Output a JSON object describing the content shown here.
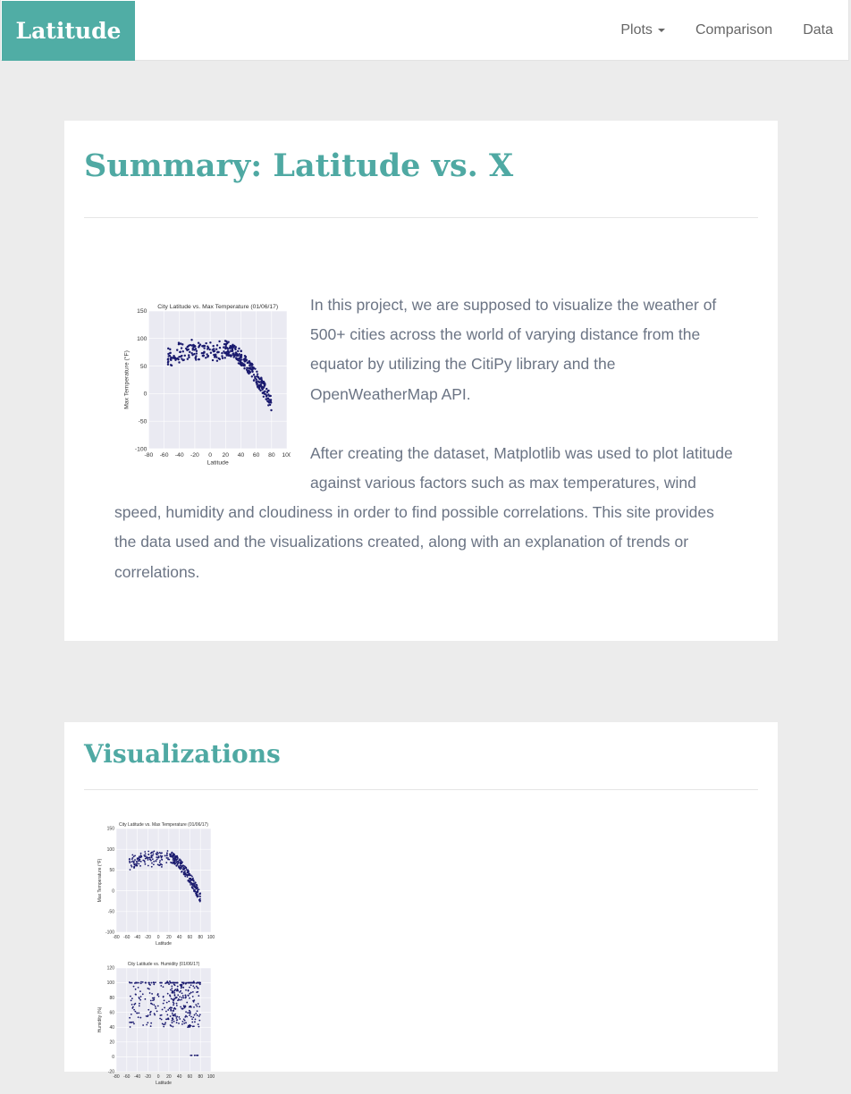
{
  "navbar": {
    "brand": "Latitude",
    "links": [
      {
        "label": "Plots",
        "has_dropdown": true
      },
      {
        "label": "Comparison"
      },
      {
        "label": "Data"
      }
    ]
  },
  "summary": {
    "title": "Summary: Latitude vs. X",
    "paragraphs": [
      "In this project, we are supposed to visualize the weather of 500+ cities across the world of varying distance from the equator by utilizing the CitiPy library and the OpenWeatherMap API.",
      "After creating the dataset, Matplotlib was used to plot latitude against various factors such as max temperatures, wind speed, humidity and cloudiness in order to find possible correlations. This site provides the data used and the visualizations created, along with an explanation of trends or correlations."
    ],
    "plot": {
      "title": "City Latitude vs. Max Temperature (01/06/17)",
      "xlabel": "Latitude",
      "ylabel": "Max Temperature (°F)",
      "xticks": [
        "-80",
        "-60",
        "-40",
        "-20",
        "0",
        "20",
        "40",
        "60",
        "80",
        "100"
      ],
      "yticks": [
        "150",
        "100",
        "50",
        "0",
        "-50",
        "-100"
      ],
      "xlim": [
        -80,
        100
      ],
      "ylim": [
        -100,
        150
      ]
    }
  },
  "visualizations": {
    "title": "Visualizations",
    "plots": [
      {
        "title": "City Latitude vs. Max Temperature (01/06/17)",
        "xlabel": "Latitude",
        "ylabel": "Max Temperature (°F)",
        "xticks": [
          "-80",
          "-60",
          "-40",
          "-20",
          "0",
          "20",
          "40",
          "60",
          "80",
          "100"
        ],
        "yticks": [
          "150",
          "100",
          "50",
          "0",
          "-50",
          "-100"
        ],
        "xlim": [
          -80,
          100
        ],
        "ylim": [
          -100,
          150
        ]
      },
      {
        "title": "City Latitude vs. Humidity (01/06/17)",
        "xlabel": "Latitude",
        "ylabel": "Humidity (%)",
        "xticks": [
          "-80",
          "-60",
          "-40",
          "-20",
          "0",
          "20",
          "40",
          "60",
          "80",
          "100"
        ],
        "yticks": [
          "120",
          "100",
          "80",
          "60",
          "40",
          "20",
          "0",
          "-20"
        ],
        "xlim": [
          -80,
          100
        ],
        "ylim": [
          -20,
          120
        ]
      }
    ]
  },
  "colors": {
    "brand": "#50ada5",
    "title": "#4fa9a3",
    "body_text": "#6b7484",
    "plot_bg": "#eaeaf2",
    "marker": "#1a1a6e"
  }
}
